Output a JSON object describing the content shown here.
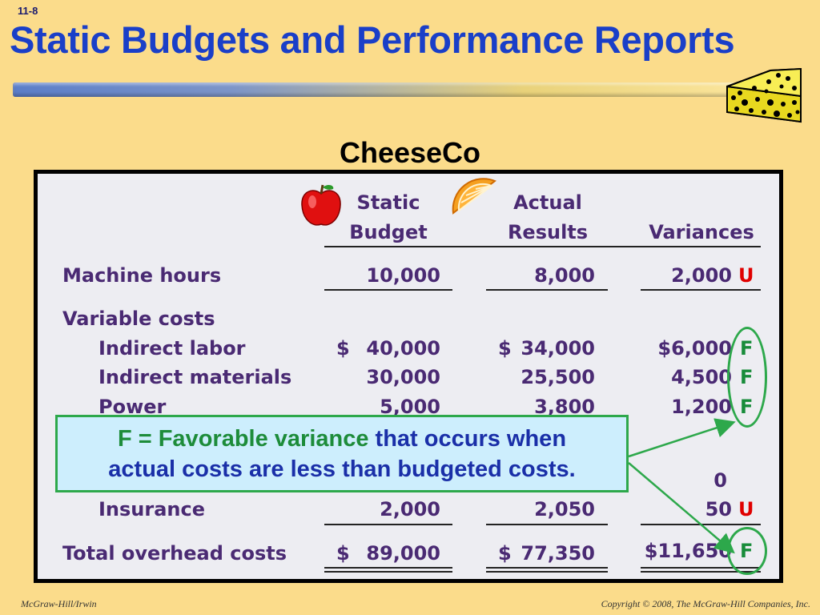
{
  "slide_number": "11-8",
  "title": "Static Budgets and Performance Reports",
  "company": "CheeseCo",
  "columns": {
    "static_budget": [
      "Static",
      "Budget"
    ],
    "actual_results": [
      "Actual",
      "Results"
    ],
    "variances": "Variances"
  },
  "rows": {
    "machine_hours": {
      "label": "Machine hours",
      "budget": "10,000",
      "actual": "8,000",
      "variance": "2,000",
      "flag": "U"
    },
    "variable_costs_header": "Variable costs",
    "indirect_labor": {
      "label": "Indirect labor",
      "budget_sym": "$",
      "budget": "40,000",
      "actual_sym": "$",
      "actual": "34,000",
      "variance": "$6,000",
      "flag": "F"
    },
    "indirect_materials": {
      "label": "Indirect materials",
      "budget": "30,000",
      "actual": "25,500",
      "variance": "4,500",
      "flag": "F"
    },
    "power": {
      "label": "Power",
      "budget": "5,000",
      "actual": "3,800",
      "variance": "1,200",
      "flag": "F"
    },
    "hidden_row": {
      "variance": "0"
    },
    "insurance": {
      "label": "Insurance",
      "budget": "2,000",
      "actual": "2,050",
      "variance": "50",
      "flag": "U"
    },
    "total": {
      "label": "Total overhead costs",
      "budget_sym": "$",
      "budget": "89,000",
      "actual_sym": "$",
      "actual": "77,350",
      "variance": "$11,650",
      "flag": "F"
    }
  },
  "callout": {
    "part1": "F = Favorable variance",
    "part2": " that occurs when",
    "line2": "actual costs are less than budgeted costs."
  },
  "footer": {
    "left": "McGraw-Hill/Irwin",
    "right": "Copyright © 2008, The McGraw-Hill Companies, Inc."
  },
  "colors": {
    "background": "#fbdc8b",
    "title": "#1a3fc8",
    "table_text": "#4a2a73",
    "unfavorable": "#e00000",
    "favorable": "#188c3a",
    "callout_bg": "#cdeefd"
  }
}
